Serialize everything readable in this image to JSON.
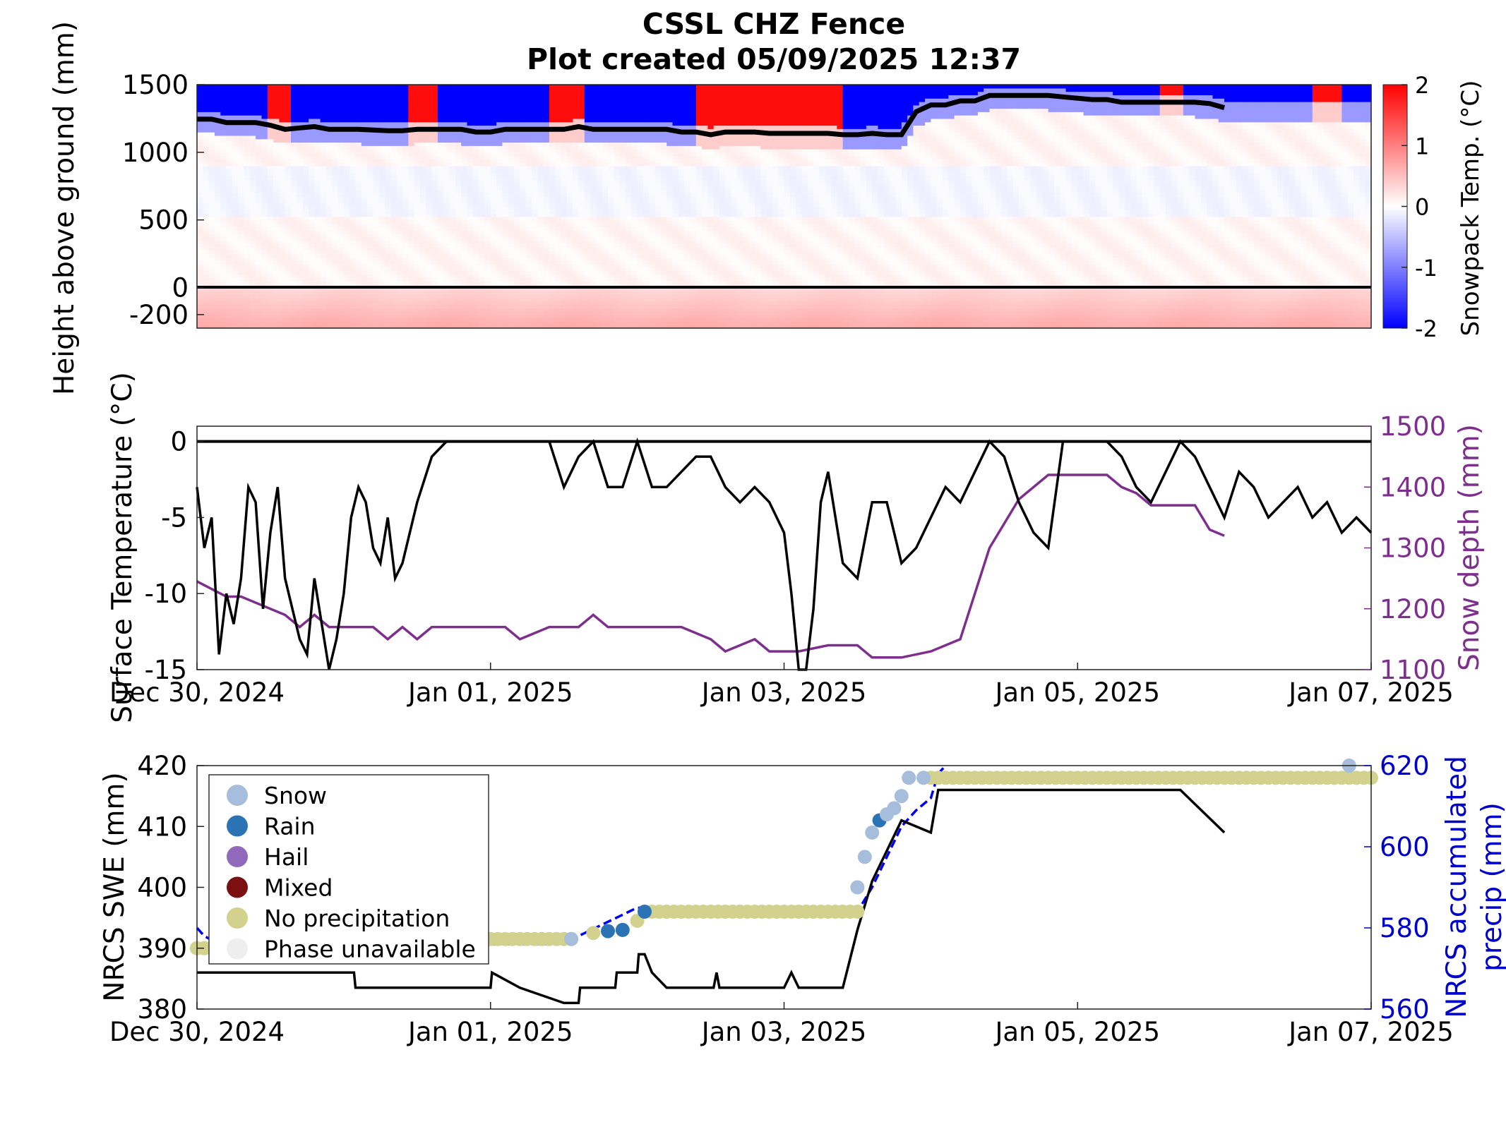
{
  "figure": {
    "title_line1": "CSSL CHZ Fence",
    "title_line2": "Plot created 05/09/2025 12:37"
  },
  "chart_data": [
    {
      "type": "heatmap",
      "panel": "snowpack",
      "ylabel": "Height above ground (mm)",
      "colorbar_label": "Snowpack Temp. (°C)",
      "colorbar_ticks": [
        "2",
        "1",
        "0",
        "-1",
        "-2"
      ],
      "clim": [
        -2,
        2
      ],
      "colors": {
        "cold": "#0000ff",
        "neutral": "#ffffff",
        "warm": "#ff0000",
        "depth_line": "#000000"
      },
      "yticks": [
        "1500",
        "1000",
        "500",
        "0",
        "-200"
      ],
      "ylim": [
        -300,
        1500
      ],
      "xlim_days": [
        0,
        8
      ],
      "snow_depth_line": {
        "x": [
          0,
          0.1,
          0.2,
          0.4,
          0.5,
          0.6,
          0.7,
          0.8,
          0.9,
          1.0,
          1.1,
          1.2,
          1.3,
          1.4,
          1.5,
          1.6,
          1.7,
          1.8,
          1.9,
          2.0,
          2.1,
          2.2,
          2.3,
          2.4,
          2.5,
          2.6,
          2.7,
          2.8,
          2.9,
          3.0,
          3.1,
          3.2,
          3.3,
          3.4,
          3.5,
          3.6,
          3.7,
          3.8,
          3.9,
          4.0,
          4.1,
          4.2,
          4.3,
          4.4,
          4.5,
          4.6,
          4.7,
          4.8,
          4.9,
          5.0,
          5.1,
          5.2,
          5.3,
          5.4,
          5.5,
          5.6,
          5.7,
          5.8,
          5.9,
          6.0,
          6.1,
          6.2,
          6.3,
          6.4,
          6.5,
          6.6,
          6.7,
          6.8,
          6.9,
          7.0
        ],
        "y": [
          1245,
          1245,
          1220,
          1220,
          1200,
          1170,
          1180,
          1190,
          1170,
          1170,
          1170,
          1165,
          1160,
          1160,
          1170,
          1170,
          1170,
          1170,
          1150,
          1150,
          1170,
          1170,
          1170,
          1170,
          1170,
          1190,
          1170,
          1170,
          1170,
          1170,
          1170,
          1170,
          1150,
          1150,
          1130,
          1150,
          1150,
          1150,
          1140,
          1140,
          1140,
          1140,
          1140,
          1130,
          1130,
          1140,
          1130,
          1130,
          1300,
          1350,
          1350,
          1380,
          1380,
          1420,
          1420,
          1420,
          1420,
          1420,
          1410,
          1400,
          1390,
          1390,
          1370,
          1370,
          1370,
          1370,
          1370,
          1370,
          1360,
          1330
        ]
      }
    },
    {
      "type": "line",
      "panel": "surface",
      "ylabel": "Surface Temperature (°C)",
      "y2label": "Snow depth (mm)",
      "yticks": [
        "0",
        "-5",
        "-10",
        "-15"
      ],
      "y2ticks": [
        "1500",
        "1400",
        "1300",
        "1200",
        "1100"
      ],
      "ylim": [
        -15,
        1
      ],
      "y2lim": [
        1100,
        1500
      ],
      "xticks": [
        "Dec 30, 2024",
        "Jan 01, 2025",
        "Jan 03, 2025",
        "Jan 05, 2025",
        "Jan 07, 2025"
      ],
      "xlim_days": [
        0,
        8
      ],
      "colors": {
        "temperature": "#000000",
        "snow_depth": "#7e2f8e",
        "zero_line": "#000000"
      },
      "series": [
        {
          "axis": "left",
          "x": [
            0,
            0.05,
            0.1,
            0.15,
            0.2,
            0.25,
            0.3,
            0.35,
            0.4,
            0.45,
            0.5,
            0.55,
            0.6,
            0.65,
            0.7,
            0.75,
            0.8,
            0.85,
            0.9,
            0.95,
            1.0,
            1.05,
            1.1,
            1.15,
            1.2,
            1.25,
            1.3,
            1.35,
            1.4,
            1.5,
            1.6,
            1.7,
            1.8,
            1.9,
            2.0,
            2.1,
            2.2,
            2.3,
            2.4,
            2.5,
            2.6,
            2.7,
            2.8,
            2.9,
            3.0,
            3.1,
            3.2,
            3.3,
            3.4,
            3.5,
            3.6,
            3.7,
            3.8,
            3.9,
            4.0,
            4.05,
            4.1,
            4.15,
            4.2,
            4.25,
            4.3,
            4.4,
            4.5,
            4.6,
            4.7,
            4.8,
            4.9,
            5.0,
            5.1,
            5.2,
            5.3,
            5.4,
            5.5,
            5.6,
            5.7,
            5.8,
            5.9,
            6.0,
            6.1,
            6.2,
            6.3,
            6.4,
            6.5,
            6.6,
            6.7,
            6.8,
            6.9,
            7.0,
            7.1,
            7.2,
            7.3,
            7.4,
            7.5,
            7.6,
            7.7,
            7.8,
            7.9,
            8.0
          ],
          "y": [
            -3,
            -7,
            -5,
            -14,
            -10,
            -12,
            -9,
            -3,
            -4,
            -11,
            -6,
            -3,
            -9,
            -11,
            -13,
            -14,
            -9,
            -12,
            -15,
            -13,
            -10,
            -5,
            -3,
            -4,
            -7,
            -8,
            -5,
            -9,
            -8,
            -4,
            -1,
            0,
            0,
            0,
            0,
            0,
            0,
            0,
            0,
            -3,
            -1,
            0,
            -3,
            -3,
            0,
            -3,
            -3,
            -2,
            -1,
            -1,
            -3,
            -4,
            -3,
            -4,
            -6,
            -10,
            -15,
            -15,
            -11,
            -4,
            -2,
            -8,
            -9,
            -4,
            -4,
            -8,
            -7,
            -5,
            -3,
            -4,
            -2,
            0,
            -1,
            -4,
            -6,
            -7,
            0,
            0,
            0,
            0,
            -1,
            -3,
            -4,
            -2,
            0,
            -1,
            -3,
            -5,
            -2,
            -3,
            -5,
            -4,
            -3,
            -5,
            -4,
            -6,
            -5,
            -6
          ]
        },
        {
          "axis": "right",
          "x": [
            0,
            0.2,
            0.3,
            0.6,
            0.7,
            0.8,
            0.9,
            1.0,
            1.2,
            1.3,
            1.4,
            1.5,
            1.6,
            1.8,
            2.0,
            2.1,
            2.2,
            2.4,
            2.5,
            2.6,
            2.7,
            2.8,
            2.9,
            3.0,
            3.3,
            3.5,
            3.6,
            3.8,
            3.9,
            4.0,
            4.1,
            4.3,
            4.5,
            4.6,
            4.8,
            5.0,
            5.2,
            5.4,
            5.6,
            5.8,
            6.0,
            6.1,
            6.2,
            6.3,
            6.4,
            6.5,
            6.6,
            6.7,
            6.8,
            6.9,
            7.0
          ],
          "y": [
            1245,
            1220,
            1220,
            1190,
            1170,
            1190,
            1170,
            1170,
            1170,
            1150,
            1170,
            1150,
            1170,
            1170,
            1170,
            1170,
            1150,
            1170,
            1170,
            1170,
            1190,
            1170,
            1170,
            1170,
            1170,
            1150,
            1130,
            1150,
            1130,
            1130,
            1130,
            1140,
            1140,
            1120,
            1120,
            1130,
            1150,
            1300,
            1380,
            1420,
            1420,
            1420,
            1420,
            1400,
            1390,
            1370,
            1370,
            1370,
            1370,
            1330,
            1320
          ]
        }
      ]
    },
    {
      "type": "line",
      "panel": "nrcs",
      "ylabel": "NRCS SWE (mm)",
      "y2label_line1": "NRCS accumulated",
      "y2label_line2": "precip (mm)",
      "yticks": [
        "420",
        "410",
        "400",
        "390",
        "380"
      ],
      "y2ticks": [
        "620",
        "600",
        "580",
        "560"
      ],
      "ylim": [
        380,
        420
      ],
      "y2lim": [
        560,
        620
      ],
      "xticks": [
        "Dec 30, 2024",
        "Jan 01, 2025",
        "Jan 03, 2025",
        "Jan 05, 2025",
        "Jan 07, 2025"
      ],
      "xlim_days": [
        0,
        8
      ],
      "colors": {
        "swe": "#000000",
        "precip": "#0000ff",
        "axis2": "#0000cc"
      },
      "legend": [
        {
          "label": "Snow",
          "color": "#a6bddb"
        },
        {
          "label": "Rain",
          "color": "#2b73b4"
        },
        {
          "label": "Hail",
          "color": "#9068bc"
        },
        {
          "label": "Mixed",
          "color": "#7b1010"
        },
        {
          "label": "No precipitation",
          "color": "#d2d28e"
        },
        {
          "label": "Phase unavailable",
          "color": "#eeeeee"
        }
      ],
      "legend_position": "top-left",
      "series": [
        {
          "axis": "left",
          "x": [
            0,
            1.07,
            1.08,
            1.09,
            1.1,
            1.12,
            1.13,
            1.14,
            1.15,
            2.0,
            2.01,
            2.2,
            2.5,
            2.6,
            2.61,
            2.85,
            2.86,
            3.0,
            3.01,
            3.05,
            3.1,
            3.2,
            3.3,
            3.4,
            3.5,
            3.52,
            3.54,
            3.56,
            3.6,
            3.7,
            3.8,
            3.9,
            4.0,
            4.05,
            4.1,
            4.2,
            4.3,
            4.35,
            4.4,
            4.5,
            4.6,
            4.7,
            4.8,
            5.0,
            5.05,
            5.1,
            5.2,
            6.5,
            6.6,
            6.7,
            7.0
          ],
          "y": [
            386,
            386,
            383.5,
            383.5,
            383.5,
            383.5,
            383.5,
            383.5,
            383.5,
            383.5,
            386,
            383.5,
            381,
            381,
            383.5,
            383.5,
            386,
            386,
            389,
            389,
            386,
            383.5,
            383.5,
            383.5,
            383.5,
            383.5,
            386,
            383.5,
            383.5,
            383.5,
            383.5,
            383.5,
            383.5,
            386,
            383.5,
            383.5,
            383.5,
            383.5,
            383.5,
            393,
            401,
            406,
            411,
            409,
            416,
            416,
            416,
            416,
            416,
            416,
            409
          ]
        },
        {
          "axis": "right",
          "x": [
            0,
            0.05,
            0.2,
            1.0,
            1.5,
            2.4,
            2.6,
            3.0,
            3.3,
            3.5,
            4.0,
            4.5,
            4.6,
            4.8,
            4.9,
            5.0,
            5.05,
            5.1
          ],
          "y": [
            580,
            578,
            575,
            579,
            576,
            576,
            578,
            585,
            584,
            584,
            584,
            584,
            590,
            605,
            609,
            612,
            618,
            621
          ]
        }
      ],
      "precip_points": [
        {
          "x": 0.0,
          "y": 390,
          "phase": "No precipitation"
        },
        {
          "x": 2.55,
          "y": 391.5,
          "phase": "Snow"
        },
        {
          "x": 2.7,
          "y": 392.5,
          "phase": "No precipitation"
        },
        {
          "x": 2.8,
          "y": 392.8,
          "phase": "Rain"
        },
        {
          "x": 2.9,
          "y": 393,
          "phase": "Rain"
        },
        {
          "x": 3.0,
          "y": 394.5,
          "phase": "No precipitation"
        },
        {
          "x": 3.05,
          "y": 396,
          "phase": "Rain"
        },
        {
          "x": 4.5,
          "y": 400,
          "phase": "Snow"
        },
        {
          "x": 4.55,
          "y": 405,
          "phase": "Snow"
        },
        {
          "x": 4.6,
          "y": 409,
          "phase": "Snow"
        },
        {
          "x": 4.65,
          "y": 411,
          "phase": "Rain"
        },
        {
          "x": 4.7,
          "y": 412,
          "phase": "Snow"
        },
        {
          "x": 4.75,
          "y": 413,
          "phase": "Snow"
        },
        {
          "x": 4.8,
          "y": 415,
          "phase": "Snow"
        },
        {
          "x": 4.85,
          "y": 418,
          "phase": "Snow"
        },
        {
          "x": 4.95,
          "y": 418,
          "phase": "Snow"
        },
        {
          "x": 7.85,
          "y": 420,
          "phase": "Snow"
        }
      ],
      "no_precip_runs": [
        {
          "x0": 0.0,
          "x1": 0.1,
          "y": 390
        },
        {
          "x0": 2.0,
          "x1": 2.55,
          "y": 391.5
        },
        {
          "x0": 3.1,
          "x1": 4.5,
          "y": 396
        },
        {
          "x0": 5.0,
          "x1": 8.0,
          "y": 418
        }
      ]
    }
  ]
}
